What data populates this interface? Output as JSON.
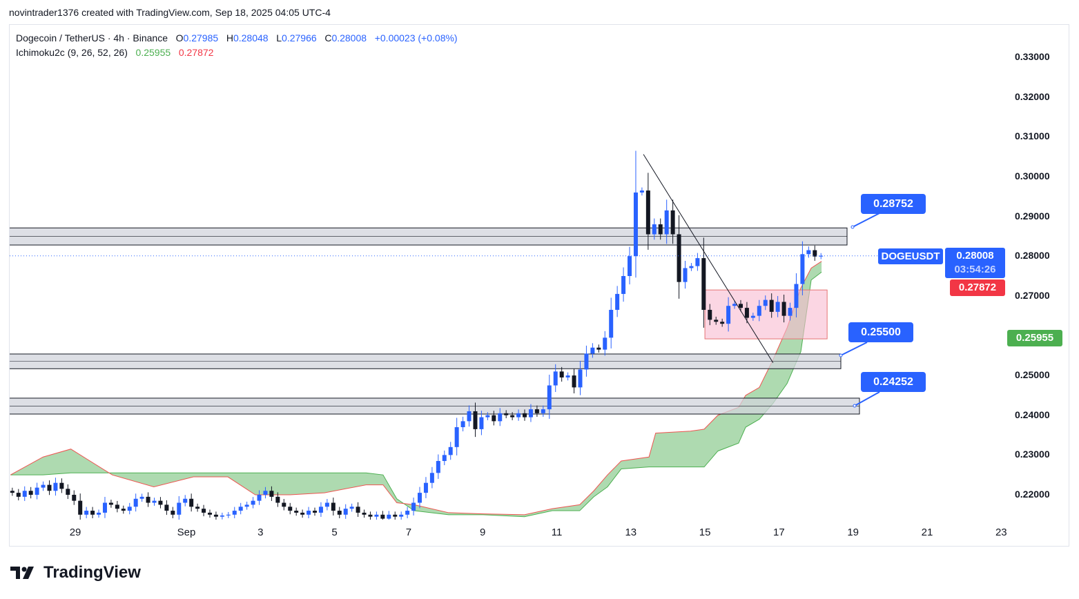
{
  "credit": "novintrader1376 created with TradingView.com, Sep 18, 2025 04:05 UTC-4",
  "legend": {
    "symbol": "Dogecoin / TetherUS · 4h · Binance",
    "o_label": "O",
    "o": "0.27985",
    "h_label": "H",
    "h": "0.28048",
    "l_label": "L",
    "l": "0.27966",
    "c_label": "C",
    "c": "0.28008",
    "change": "+0.00023 (+0.08%)",
    "indicator": "Ichimoku2c (9, 26, 52, 26)",
    "ind_green": "0.25955",
    "ind_red": "0.27872"
  },
  "price_tags": {
    "symbol": "DOGEUSDT",
    "last": "0.28008",
    "countdown": "03:54:26",
    "red": "0.27872",
    "green": "0.25955"
  },
  "callouts": [
    "0.28752",
    "0.25500",
    "0.24252"
  ],
  "logo": "TradingView",
  "colors": {
    "up": "#2962ff",
    "down": "#131722",
    "cloud": "#a5d6a7",
    "spanA": "#4caf50",
    "spanB": "#ef5350",
    "zone": "#d1d4dc",
    "box": "#f8bbd0"
  },
  "chart_data": {
    "type": "candlestick",
    "timeframe": "4h",
    "first_candle_day": -3.7,
    "candle_days": 0.16667,
    "close": [
      0.2205,
      0.2195,
      0.221,
      0.22,
      0.2218,
      0.2225,
      0.221,
      0.223,
      0.2215,
      0.22,
      0.2185,
      0.215,
      0.216,
      0.215,
      0.2155,
      0.218,
      0.2175,
      0.2165,
      0.216,
      0.217,
      0.219,
      0.2195,
      0.218,
      0.2185,
      0.2175,
      0.216,
      0.215,
      0.218,
      0.219,
      0.217,
      0.2165,
      0.2155,
      0.215,
      0.2145,
      0.2148,
      0.215,
      0.216,
      0.217,
      0.2175,
      0.2185,
      0.22,
      0.221,
      0.2195,
      0.218,
      0.217,
      0.216,
      0.2155,
      0.215,
      0.216,
      0.2155,
      0.217,
      0.218,
      0.216,
      0.215,
      0.2165,
      0.217,
      0.2155,
      0.215,
      0.2145,
      0.215,
      0.214,
      0.215,
      0.2145,
      0.215,
      0.216,
      0.218,
      0.2205,
      0.223,
      0.2255,
      0.2285,
      0.23,
      0.232,
      0.237,
      0.2385,
      0.241,
      0.2365,
      0.2395,
      0.24,
      0.2385,
      0.2405,
      0.24,
      0.2395,
      0.2405,
      0.2395,
      0.2415,
      0.2405,
      0.2415,
      0.2475,
      0.251,
      0.2495,
      0.25,
      0.247,
      0.2515,
      0.2555,
      0.257,
      0.2565,
      0.2595,
      0.2665,
      0.2705,
      0.275,
      0.28,
      0.296,
      0.2965,
      0.2855,
      0.288,
      0.2855,
      0.2915,
      0.2855,
      0.2735,
      0.277,
      0.2775,
      0.2795,
      0.2665,
      0.264,
      0.2635,
      0.263,
      0.2675,
      0.268,
      0.267,
      0.2645,
      0.265,
      0.2675,
      0.269,
      0.266,
      0.2685,
      0.265,
      0.267,
      0.273,
      0.2805,
      0.2815,
      0.2799,
      0.2801
    ],
    "peak_high": 0.3065,
    "ichimoku_cloud": [
      [
        -3.75,
        0.225,
        0.225
      ],
      [
        -2.87,
        0.225,
        0.2295
      ],
      [
        -2.12,
        0.2255,
        0.2315
      ],
      [
        -1.0,
        0.2255,
        0.225
      ],
      [
        0.12,
        0.2255,
        0.222
      ],
      [
        1.19,
        0.2255,
        0.2245
      ],
      [
        2.12,
        0.2255,
        0.2245
      ],
      [
        2.86,
        0.2255,
        0.22
      ],
      [
        3.8,
        0.2255,
        0.22
      ],
      [
        4.73,
        0.2255,
        0.2205
      ],
      [
        5.85,
        0.2255,
        0.2225
      ],
      [
        6.31,
        0.225,
        0.2225
      ],
      [
        6.68,
        0.219,
        0.218
      ],
      [
        7.15,
        0.216,
        0.2175
      ],
      [
        8.08,
        0.215,
        0.2155
      ],
      [
        9.01,
        0.215,
        0.2152
      ],
      [
        10.13,
        0.2145,
        0.215
      ],
      [
        10.88,
        0.216,
        0.2165
      ],
      [
        11.62,
        0.216,
        0.2175
      ],
      [
        12.0,
        0.2195,
        0.221
      ],
      [
        12.37,
        0.222,
        0.225
      ],
      [
        12.74,
        0.2265,
        0.2285
      ],
      [
        13.49,
        0.227,
        0.2295
      ],
      [
        13.67,
        0.227,
        0.2355
      ],
      [
        14.61,
        0.227,
        0.236
      ],
      [
        14.98,
        0.227,
        0.2365
      ],
      [
        15.35,
        0.231,
        0.24
      ],
      [
        15.91,
        0.233,
        0.242
      ],
      [
        16.1,
        0.237,
        0.245
      ],
      [
        16.47,
        0.239,
        0.247
      ],
      [
        16.84,
        0.243,
        0.254
      ],
      [
        17.22,
        0.248,
        0.262
      ],
      [
        17.59,
        0.256,
        0.272
      ],
      [
        17.87,
        0.274,
        0.277
      ],
      [
        18.15,
        0.276,
        0.2787
      ]
    ],
    "zones": [
      [
        0.2828,
        0.2871
      ],
      [
        0.2517,
        0.2554
      ],
      [
        0.2403,
        0.2443
      ]
    ],
    "range_box": {
      "from_day": 15.0,
      "to_day": 18.3,
      "low": 0.2592,
      "high": 0.2715
    },
    "trend_line": [
      [
        13.34,
        0.3056
      ],
      [
        16.84,
        0.2532
      ]
    ],
    "y_ticks": [
      "0.33000",
      "0.32000",
      "0.31000",
      "0.30000",
      "0.29000",
      "0.28000",
      "0.27000",
      "0.25000",
      "0.24000",
      "0.23000",
      "0.22000"
    ],
    "x_ticks": [
      {
        "label": "29",
        "day": -2
      },
      {
        "label": "Sep",
        "day": 1
      },
      {
        "label": "3",
        "day": 3
      },
      {
        "label": "5",
        "day": 5
      },
      {
        "label": "7",
        "day": 7
      },
      {
        "label": "9",
        "day": 9
      },
      {
        "label": "11",
        "day": 11
      },
      {
        "label": "13",
        "day": 13
      },
      {
        "label": "15",
        "day": 15
      },
      {
        "label": "17",
        "day": 17
      },
      {
        "label": "19",
        "day": 19
      },
      {
        "label": "21",
        "day": 21
      },
      {
        "label": "23",
        "day": 23
      }
    ],
    "ylim": [
      0.2139,
      0.3389
    ]
  }
}
